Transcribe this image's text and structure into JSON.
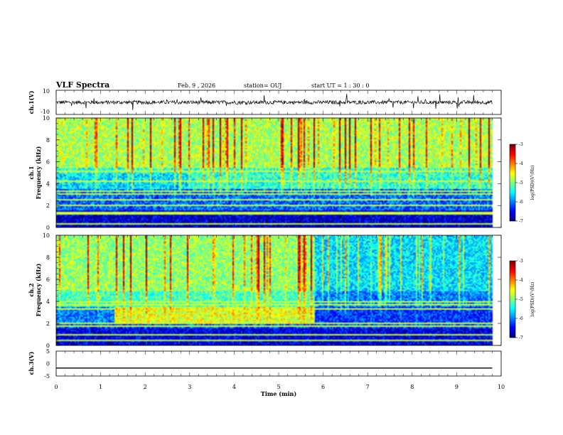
{
  "header": {
    "title": "VLF Spectra",
    "date": "Feb. 9 , 2026",
    "station": "station= OUJ",
    "start": "start UT = 1 : 30 : 0"
  },
  "chart_data": [
    {
      "type": "line",
      "panel": "ch1-waveform",
      "ylabel": "ch.1(V)",
      "ylim": [
        -10,
        10
      ],
      "yticks": [
        "10",
        "-10"
      ],
      "series": [
        {
          "name": "",
          "baseline": 0,
          "noise_amplitude": 1.5,
          "spike_amplitude": 6
        }
      ]
    },
    {
      "type": "heatmap",
      "panel": "ch1-spectrogram",
      "ylabel": "ch.1\nFrequency (kHz)",
      "ylim": [
        0,
        10
      ],
      "yticks": [
        "0",
        "2",
        "4",
        "6",
        "8",
        "10"
      ],
      "colorbar": {
        "label": "log(PSD)(V²/Hz)",
        "range": [
          -7,
          -3
        ],
        "ticks": [
          "-3",
          "-4",
          "-5",
          "-6",
          "-7"
        ]
      },
      "regions": [
        {
          "f": [
            0,
            1.5
          ],
          "log_psd": -6.7
        },
        {
          "f": [
            1.5,
            3.5
          ],
          "log_psd": -6.1
        },
        {
          "f": [
            3.5,
            5.5
          ],
          "log_psd": -5.3
        },
        {
          "f": [
            5.5,
            10
          ],
          "log_psd": -4.8
        }
      ],
      "lines_khz": [
        0.3,
        1.3,
        2.0,
        2.5,
        3.0,
        3.3,
        4.2,
        5.1
      ]
    },
    {
      "type": "heatmap",
      "panel": "ch2-spectrogram",
      "ylabel": "ch.2\nFrequency (kHz)",
      "ylim": [
        0,
        10
      ],
      "yticks": [
        "0",
        "2",
        "4",
        "6",
        "8",
        "10"
      ],
      "colorbar": {
        "label": "log(PSD)(V²/Hz)",
        "range": [
          -7,
          -3
        ],
        "ticks": [
          "-3",
          "-4",
          "-5",
          "-6",
          "-7"
        ]
      },
      "band_t": [
        1.3,
        5.8
      ],
      "band_f": [
        2.0,
        3.5
      ],
      "band_log_psd": -4.6,
      "change_t": 5.8,
      "lines_khz": [
        0.5,
        1.0,
        1.7,
        2.0,
        3.3,
        3.7,
        4.0
      ]
    },
    {
      "type": "line",
      "panel": "ch3-waveform",
      "ylabel": "ch.3(V)",
      "ylim": [
        -5,
        5
      ],
      "yticks": [
        "5",
        "0",
        "-5"
      ],
      "series": [
        {
          "name": "",
          "x": [
            0,
            9.8
          ],
          "y": [
            -1.8,
            -1.8
          ]
        }
      ]
    }
  ],
  "x_axis": {
    "xlabel": "Time (min)",
    "xlim": [
      0,
      10
    ],
    "ticks": [
      "0",
      "1",
      "2",
      "3",
      "4",
      "5",
      "6",
      "7",
      "8",
      "9",
      "10"
    ],
    "data_end_min": 9.8
  }
}
